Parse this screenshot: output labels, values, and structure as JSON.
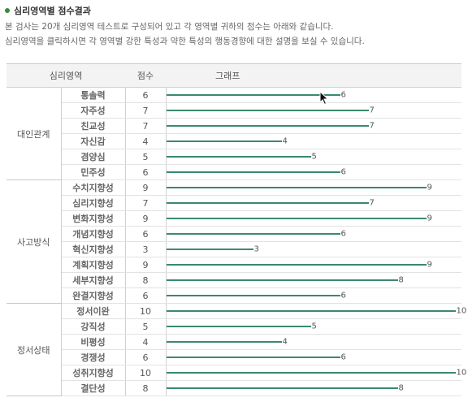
{
  "header": {
    "title": "심리영역별 점수결과",
    "line1": "본 검사는 20개 심리영역 테스트로 구성되어 있고 각 영역별 귀하의 점수는 아래와 같습니다.",
    "line2": "심리영역을 클릭하시면 각 영역별 강한 특성과 약한 특성의 행동경향에 대한 설명을 보실 수 있습니다."
  },
  "table": {
    "col_area": "심리영역",
    "col_score": "점수",
    "col_graph": "그래프",
    "max_score": 10,
    "groups": [
      {
        "name": "대인관계",
        "items": [
          {
            "label": "통솔력",
            "score": "6",
            "value": 6
          },
          {
            "label": "자주성",
            "score": "7",
            "value": 7
          },
          {
            "label": "친교성",
            "score": "7",
            "value": 7
          },
          {
            "label": "자신감",
            "score": "4",
            "value": 4
          },
          {
            "label": "겸양심",
            "score": "5",
            "value": 5
          },
          {
            "label": "민주성",
            "score": "6",
            "value": 6
          }
        ]
      },
      {
        "name": "사고방식",
        "items": [
          {
            "label": "수치지향성",
            "score": "9",
            "value": 9
          },
          {
            "label": "심리지향성",
            "score": "7",
            "value": 7
          },
          {
            "label": "변화지향성",
            "score": "9",
            "value": 9
          },
          {
            "label": "개념지향성",
            "score": "6",
            "value": 6
          },
          {
            "label": "혁신지향성",
            "score": "3",
            "value": 3
          },
          {
            "label": "계획지향성",
            "score": "9",
            "value": 9
          },
          {
            "label": "세부지향성",
            "score": "8",
            "value": 8
          },
          {
            "label": "완결지향성",
            "score": "6",
            "value": 6
          }
        ]
      },
      {
        "name": "정서상태",
        "items": [
          {
            "label": "정서이완",
            "score": "10",
            "value": 10
          },
          {
            "label": "강직성",
            "score": "5",
            "value": 5
          },
          {
            "label": "비평성",
            "score": "4",
            "value": 4
          },
          {
            "label": "경쟁성",
            "score": "6",
            "value": 6
          },
          {
            "label": "성취지향성",
            "score": "10",
            "value": 10
          },
          {
            "label": "결단성",
            "score": "8",
            "value": 8
          }
        ]
      }
    ]
  },
  "colors": {
    "bar": "#3a8a6a",
    "bullet": "#3a8a3a"
  }
}
